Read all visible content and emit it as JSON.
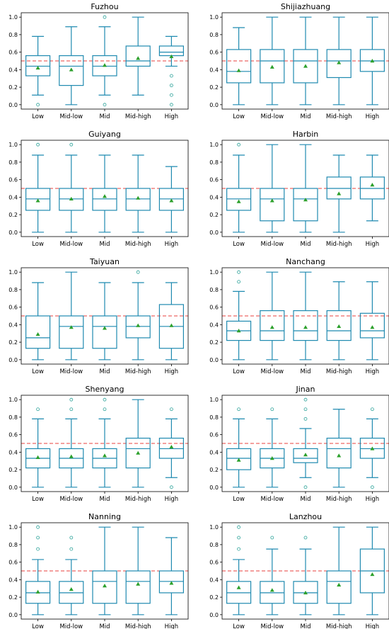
{
  "chart_data": [
    {
      "type": "box",
      "title": "Fuzhou",
      "categories": [
        "Low",
        "Mid-low",
        "Mid",
        "Mid-high",
        "High"
      ],
      "yticks": [
        "0.0",
        "0.2",
        "0.4",
        "0.6",
        "0.8",
        "1.0"
      ],
      "ylim": [
        -0.05,
        1.05
      ],
      "reference_line": 0.5,
      "boxes": [
        {
          "whislo": 0.11,
          "q1": 0.33,
          "med": 0.44,
          "q3": 0.56,
          "whishi": 0.78,
          "mean": 0.42,
          "fliers": [
            0.0
          ]
        },
        {
          "whislo": 0.0,
          "q1": 0.22,
          "med": 0.44,
          "q3": 0.56,
          "whishi": 0.89,
          "mean": 0.4,
          "fliers": []
        },
        {
          "whislo": 0.11,
          "q1": 0.33,
          "med": 0.44,
          "q3": 0.56,
          "whishi": 0.89,
          "mean": 0.45,
          "fliers": [
            1.0,
            0.0
          ]
        },
        {
          "whislo": 0.11,
          "q1": 0.44,
          "med": 0.5,
          "q3": 0.67,
          "whishi": 1.0,
          "mean": 0.53,
          "fliers": []
        },
        {
          "whislo": 0.44,
          "q1": 0.56,
          "med": 0.6,
          "q3": 0.67,
          "whishi": 0.78,
          "mean": 0.55,
          "fliers": [
            0.33,
            0.22,
            0.11,
            0.0
          ]
        }
      ]
    },
    {
      "type": "box",
      "title": "Shijiazhuang",
      "categories": [
        "Low",
        "Mid-low",
        "Mid",
        "Mid-high",
        "High"
      ],
      "yticks": [
        "0.0",
        "0.2",
        "0.4",
        "0.6",
        "0.8",
        "1.0"
      ],
      "ylim": [
        -0.05,
        1.05
      ],
      "reference_line": 0.5,
      "boxes": [
        {
          "whislo": 0.0,
          "q1": 0.25,
          "med": 0.38,
          "q3": 0.63,
          "whishi": 0.88,
          "mean": 0.39,
          "fliers": []
        },
        {
          "whislo": 0.0,
          "q1": 0.25,
          "med": 0.5,
          "q3": 0.63,
          "whishi": 1.0,
          "mean": 0.43,
          "fliers": []
        },
        {
          "whislo": 0.0,
          "q1": 0.25,
          "med": 0.5,
          "q3": 0.63,
          "whishi": 1.0,
          "mean": 0.44,
          "fliers": []
        },
        {
          "whislo": 0.0,
          "q1": 0.31,
          "med": 0.5,
          "q3": 0.63,
          "whishi": 1.0,
          "mean": 0.48,
          "fliers": []
        },
        {
          "whislo": 0.0,
          "q1": 0.38,
          "med": 0.5,
          "q3": 0.63,
          "whishi": 1.0,
          "mean": 0.5,
          "fliers": []
        }
      ]
    },
    {
      "type": "box",
      "title": "Guiyang",
      "categories": [
        "Low",
        "Mid-low",
        "Mid",
        "Mid-high",
        "High"
      ],
      "yticks": [
        "0.0",
        "0.2",
        "0.4",
        "0.6",
        "0.8",
        "1.0"
      ],
      "ylim": [
        -0.05,
        1.05
      ],
      "reference_line": 0.5,
      "boxes": [
        {
          "whislo": 0.0,
          "q1": 0.25,
          "med": 0.38,
          "q3": 0.5,
          "whishi": 0.88,
          "mean": 0.36,
          "fliers": [
            1.0
          ]
        },
        {
          "whislo": 0.0,
          "q1": 0.25,
          "med": 0.38,
          "q3": 0.5,
          "whishi": 0.88,
          "mean": 0.38,
          "fliers": [
            1.0
          ]
        },
        {
          "whislo": 0.0,
          "q1": 0.25,
          "med": 0.38,
          "q3": 0.5,
          "whishi": 0.88,
          "mean": 0.41,
          "fliers": []
        },
        {
          "whislo": 0.0,
          "q1": 0.25,
          "med": 0.38,
          "q3": 0.5,
          "whishi": 0.88,
          "mean": 0.39,
          "fliers": []
        },
        {
          "whislo": 0.0,
          "q1": 0.25,
          "med": 0.38,
          "q3": 0.5,
          "whishi": 0.75,
          "mean": 0.36,
          "fliers": []
        }
      ]
    },
    {
      "type": "box",
      "title": "Harbin",
      "categories": [
        "Low",
        "Mid-low",
        "Mid",
        "Mid-high",
        "High"
      ],
      "yticks": [
        "0.0",
        "0.2",
        "0.4",
        "0.6",
        "0.8",
        "1.0"
      ],
      "ylim": [
        -0.05,
        1.05
      ],
      "reference_line": 0.5,
      "boxes": [
        {
          "whislo": 0.0,
          "q1": 0.25,
          "med": 0.38,
          "q3": 0.5,
          "whishi": 0.88,
          "mean": 0.35,
          "fliers": [
            1.0
          ]
        },
        {
          "whislo": 0.0,
          "q1": 0.13,
          "med": 0.38,
          "q3": 0.5,
          "whishi": 1.0,
          "mean": 0.36,
          "fliers": []
        },
        {
          "whislo": 0.0,
          "q1": 0.13,
          "med": 0.38,
          "q3": 0.5,
          "whishi": 1.0,
          "mean": 0.37,
          "fliers": []
        },
        {
          "whislo": 0.0,
          "q1": 0.38,
          "med": 0.5,
          "q3": 0.63,
          "whishi": 0.88,
          "mean": 0.44,
          "fliers": []
        },
        {
          "whislo": 0.13,
          "q1": 0.38,
          "med": 0.5,
          "q3": 0.63,
          "whishi": 0.88,
          "mean": 0.54,
          "fliers": []
        }
      ]
    },
    {
      "type": "box",
      "title": "Taiyuan",
      "categories": [
        "Low",
        "Mid-low",
        "Mid",
        "Mid-high",
        "High"
      ],
      "yticks": [
        "0.0",
        "0.2",
        "0.4",
        "0.6",
        "0.8",
        "1.0"
      ],
      "ylim": [
        -0.05,
        1.05
      ],
      "reference_line": 0.5,
      "boxes": [
        {
          "whislo": 0.0,
          "q1": 0.13,
          "med": 0.25,
          "q3": 0.5,
          "whishi": 0.88,
          "mean": 0.29,
          "fliers": []
        },
        {
          "whislo": 0.0,
          "q1": 0.13,
          "med": 0.38,
          "q3": 0.5,
          "whishi": 1.0,
          "mean": 0.37,
          "fliers": []
        },
        {
          "whislo": 0.0,
          "q1": 0.13,
          "med": 0.38,
          "q3": 0.5,
          "whishi": 0.88,
          "mean": 0.36,
          "fliers": []
        },
        {
          "whislo": 0.0,
          "q1": 0.25,
          "med": 0.38,
          "q3": 0.5,
          "whishi": 0.88,
          "mean": 0.39,
          "fliers": [
            1.0
          ]
        },
        {
          "whislo": 0.0,
          "q1": 0.13,
          "med": 0.38,
          "q3": 0.63,
          "whishi": 0.88,
          "mean": 0.39,
          "fliers": []
        }
      ]
    },
    {
      "type": "box",
      "title": "Nanchang",
      "categories": [
        "Low",
        "Mid-low",
        "Mid",
        "Mid-high",
        "High"
      ],
      "yticks": [
        "0.0",
        "0.2",
        "0.4",
        "0.6",
        "0.8",
        "1.0"
      ],
      "ylim": [
        -0.05,
        1.05
      ],
      "reference_line": 0.5,
      "boxes": [
        {
          "whislo": 0.0,
          "q1": 0.22,
          "med": 0.33,
          "q3": 0.44,
          "whishi": 0.78,
          "mean": 0.33,
          "fliers": [
            1.0,
            0.89
          ]
        },
        {
          "whislo": 0.0,
          "q1": 0.22,
          "med": 0.33,
          "q3": 0.56,
          "whishi": 1.0,
          "mean": 0.37,
          "fliers": []
        },
        {
          "whislo": 0.0,
          "q1": 0.22,
          "med": 0.33,
          "q3": 0.56,
          "whishi": 1.0,
          "mean": 0.37,
          "fliers": []
        },
        {
          "whislo": 0.0,
          "q1": 0.22,
          "med": 0.33,
          "q3": 0.56,
          "whishi": 0.89,
          "mean": 0.38,
          "fliers": []
        },
        {
          "whislo": 0.0,
          "q1": 0.25,
          "med": 0.33,
          "q3": 0.53,
          "whishi": 0.89,
          "mean": 0.37,
          "fliers": []
        }
      ]
    },
    {
      "type": "box",
      "title": "Shenyang",
      "categories": [
        "Low",
        "Mid-low",
        "Mid",
        "Mid-high",
        "High"
      ],
      "yticks": [
        "0.0",
        "0.2",
        "0.4",
        "0.6",
        "0.8",
        "1.0"
      ],
      "ylim": [
        -0.05,
        1.05
      ],
      "reference_line": 0.5,
      "boxes": [
        {
          "whislo": 0.0,
          "q1": 0.22,
          "med": 0.33,
          "q3": 0.44,
          "whishi": 0.78,
          "mean": 0.34,
          "fliers": [
            0.89
          ]
        },
        {
          "whislo": 0.0,
          "q1": 0.22,
          "med": 0.33,
          "q3": 0.44,
          "whishi": 0.78,
          "mean": 0.35,
          "fliers": [
            1.0,
            0.89
          ]
        },
        {
          "whislo": 0.0,
          "q1": 0.22,
          "med": 0.33,
          "q3": 0.44,
          "whishi": 0.78,
          "mean": 0.36,
          "fliers": [
            1.0,
            0.89
          ]
        },
        {
          "whislo": 0.0,
          "q1": 0.22,
          "med": 0.44,
          "q3": 0.56,
          "whishi": 1.0,
          "mean": 0.39,
          "fliers": []
        },
        {
          "whislo": 0.11,
          "q1": 0.33,
          "med": 0.44,
          "q3": 0.56,
          "whishi": 0.78,
          "mean": 0.46,
          "fliers": [
            0.89,
            0.0
          ]
        }
      ]
    },
    {
      "type": "box",
      "title": "Jinan",
      "categories": [
        "Low",
        "Mid-low",
        "Mid",
        "Mid-high",
        "High"
      ],
      "yticks": [
        "0.0",
        "0.2",
        "0.4",
        "0.6",
        "0.8",
        "1.0"
      ],
      "ylim": [
        -0.05,
        1.05
      ],
      "reference_line": 0.5,
      "boxes": [
        {
          "whislo": 0.0,
          "q1": 0.2,
          "med": 0.33,
          "q3": 0.44,
          "whishi": 0.78,
          "mean": 0.31,
          "fliers": [
            0.89
          ]
        },
        {
          "whislo": 0.0,
          "q1": 0.22,
          "med": 0.33,
          "q3": 0.44,
          "whishi": 0.78,
          "mean": 0.33,
          "fliers": [
            0.89
          ]
        },
        {
          "whislo": 0.11,
          "q1": 0.28,
          "med": 0.33,
          "q3": 0.44,
          "whishi": 0.67,
          "mean": 0.37,
          "fliers": [
            1.0,
            0.89,
            0.78,
            0.0
          ]
        },
        {
          "whislo": 0.0,
          "q1": 0.22,
          "med": 0.44,
          "q3": 0.56,
          "whishi": 0.89,
          "mean": 0.36,
          "fliers": []
        },
        {
          "whislo": 0.11,
          "q1": 0.33,
          "med": 0.44,
          "q3": 0.56,
          "whishi": 0.78,
          "mean": 0.44,
          "fliers": [
            0.89,
            0.0
          ]
        }
      ]
    },
    {
      "type": "box",
      "title": "Nanning",
      "categories": [
        "Low",
        "Mid-low",
        "Mid",
        "Mid-high",
        "High"
      ],
      "yticks": [
        "0.0",
        "0.2",
        "0.4",
        "0.6",
        "0.8",
        "1.0"
      ],
      "ylim": [
        -0.05,
        1.05
      ],
      "reference_line": 0.5,
      "boxes": [
        {
          "whislo": 0.0,
          "q1": 0.13,
          "med": 0.25,
          "q3": 0.38,
          "whishi": 0.63,
          "mean": 0.26,
          "fliers": [
            1.0,
            0.88,
            0.75
          ]
        },
        {
          "whislo": 0.0,
          "q1": 0.13,
          "med": 0.25,
          "q3": 0.38,
          "whishi": 0.63,
          "mean": 0.29,
          "fliers": [
            0.88,
            0.75
          ]
        },
        {
          "whislo": 0.0,
          "q1": 0.13,
          "med": 0.38,
          "q3": 0.5,
          "whishi": 1.0,
          "mean": 0.33,
          "fliers": []
        },
        {
          "whislo": 0.0,
          "q1": 0.13,
          "med": 0.38,
          "q3": 0.5,
          "whishi": 1.0,
          "mean": 0.35,
          "fliers": []
        },
        {
          "whislo": 0.0,
          "q1": 0.25,
          "med": 0.38,
          "q3": 0.5,
          "whishi": 0.88,
          "mean": 0.36,
          "fliers": []
        }
      ]
    },
    {
      "type": "box",
      "title": "Lanzhou",
      "categories": [
        "Low",
        "Mid-low",
        "Mid",
        "Mid-high",
        "High"
      ],
      "yticks": [
        "0.0",
        "0.2",
        "0.4",
        "0.6",
        "0.8",
        "1.0"
      ],
      "ylim": [
        -0.05,
        1.05
      ],
      "reference_line": 0.5,
      "boxes": [
        {
          "whislo": 0.0,
          "q1": 0.13,
          "med": 0.25,
          "q3": 0.38,
          "whishi": 0.63,
          "mean": 0.31,
          "fliers": [
            1.0,
            0.88,
            0.75
          ]
        },
        {
          "whislo": 0.0,
          "q1": 0.13,
          "med": 0.25,
          "q3": 0.38,
          "whishi": 0.75,
          "mean": 0.28,
          "fliers": [
            0.88
          ]
        },
        {
          "whislo": 0.0,
          "q1": 0.13,
          "med": 0.25,
          "q3": 0.38,
          "whishi": 0.75,
          "mean": 0.25,
          "fliers": [
            0.88
          ]
        },
        {
          "whislo": 0.0,
          "q1": 0.13,
          "med": 0.38,
          "q3": 0.5,
          "whishi": 1.0,
          "mean": 0.34,
          "fliers": []
        },
        {
          "whislo": 0.0,
          "q1": 0.25,
          "med": 0.5,
          "q3": 0.75,
          "whishi": 1.0,
          "mean": 0.46,
          "fliers": []
        }
      ]
    }
  ],
  "colors": {
    "box": "#1f8ab0",
    "mean": "#2ca02c",
    "flier": "#2aa198",
    "reference_line": "#e8413c",
    "axes": "#000000"
  }
}
